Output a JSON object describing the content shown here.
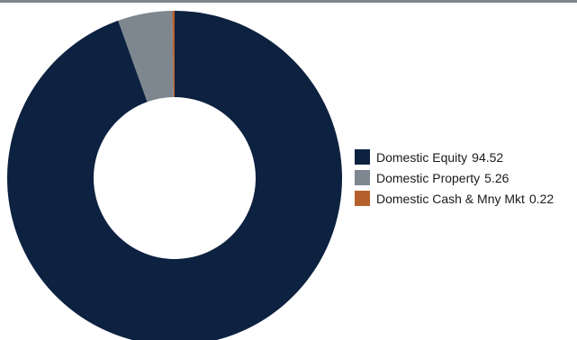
{
  "chart_data": {
    "type": "pie",
    "donut": true,
    "title": "",
    "legend_position": "right",
    "series": [
      {
        "name": "Domestic Equity",
        "value": 94.52,
        "value_label": "94.52",
        "color": "#0d2140"
      },
      {
        "name": "Domestic Property",
        "value": 5.26,
        "value_label": "5.26",
        "color": "#7e878f"
      },
      {
        "name": "Domestic Cash & Mny Mkt",
        "value": 0.22,
        "value_label": "0.22",
        "color": "#b5602c"
      }
    ]
  }
}
